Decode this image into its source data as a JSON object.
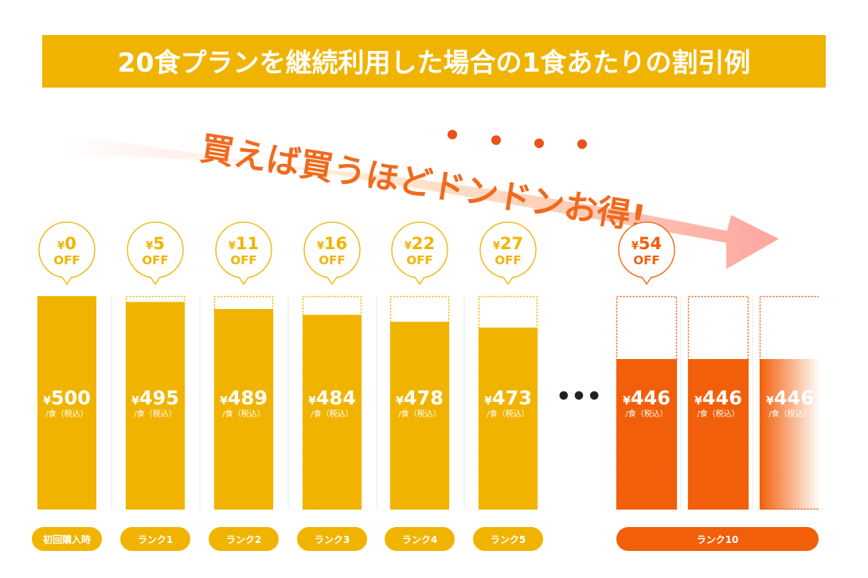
{
  "chart_data": {
    "type": "bar",
    "title": "20食プランを継続利用した場合の1食あたりの割引例",
    "catchphrase": "買えば買うほどドンドンお得!",
    "currency_symbol": "¥",
    "off_label": "OFF",
    "unit_label": "/食（税込）",
    "ellipsis": "•••",
    "base_price": 500,
    "ylim": [
      0,
      500
    ],
    "categories": [
      "初回購入時",
      "ランク1",
      "ランク2",
      "ランク3",
      "ランク4",
      "ランク5",
      "ランク10"
    ],
    "values": [
      500,
      495,
      489,
      484,
      478,
      473,
      446
    ],
    "discounts": [
      0,
      5,
      11,
      16,
      22,
      27,
      54
    ],
    "rank10_repeat_values": [
      446,
      446,
      446
    ],
    "colors": {
      "title_bg": "#F0B400",
      "bar": "#F0B400",
      "bar_highlight": "#F25F0A",
      "catch_text": "#F06A1E",
      "dots": "#E8521B",
      "arrow": "#FFA5A0",
      "bubble_border": "#F0B400",
      "bubble_text": "#F0B400",
      "bubble_highlight_text": "#F25F0A",
      "white": "#FFFFFF"
    }
  }
}
